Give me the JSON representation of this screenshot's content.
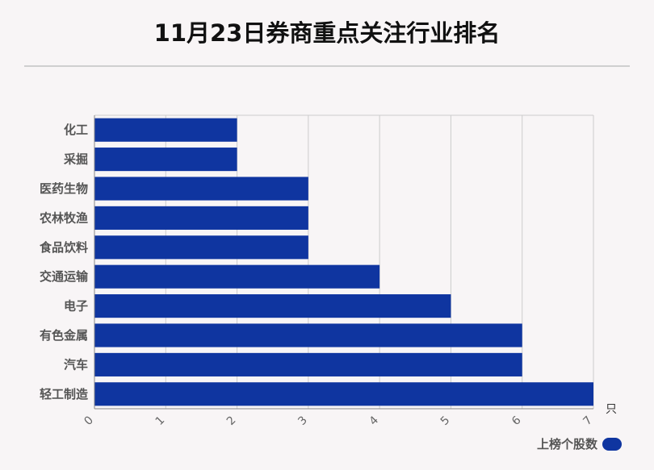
{
  "title": "11月23日券商重点关注行业排名",
  "chart_data": {
    "type": "bar",
    "orientation": "horizontal",
    "categories": [
      "化工",
      "采掘",
      "医药生物",
      "农林牧渔",
      "食品饮料",
      "交通运输",
      "电子",
      "有色金属",
      "汽车",
      "轻工制造"
    ],
    "series": [
      {
        "name": "上榜个股数",
        "values": [
          2,
          2,
          3,
          3,
          3,
          4,
          5,
          6,
          6,
          7
        ]
      }
    ],
    "xlim": [
      0,
      7
    ],
    "ticks": [
      "0",
      "1",
      "2",
      "3",
      "4",
      "5",
      "6",
      "7"
    ],
    "x_unit": "只",
    "grid": true,
    "legend_position": "bottom-right",
    "bar_color": "#0f35a0"
  }
}
